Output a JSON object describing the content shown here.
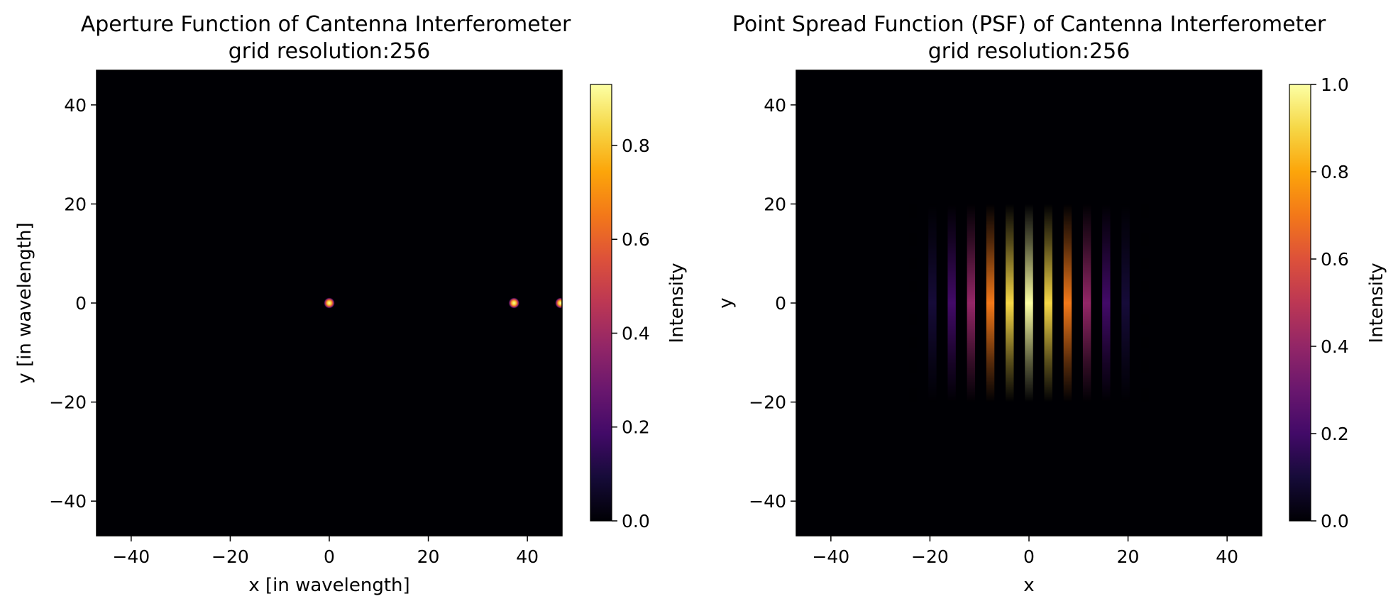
{
  "chart_data": [
    {
      "type": "heatmap",
      "title": "Aperture Function of Cantenna Interferometer",
      "subtitle": "grid resolution:256",
      "xlabel": "x [in wavelength]",
      "ylabel": "y [in wavelength]",
      "xlim": [
        -47,
        47
      ],
      "ylim": [
        -47,
        47
      ],
      "xticks": [
        -40,
        -20,
        0,
        20,
        40
      ],
      "yticks": [
        -40,
        -20,
        0,
        20,
        40
      ],
      "colormap": "inferno",
      "background": "#000004",
      "grid": false,
      "features": [
        {
          "x": 0,
          "y": 0,
          "value": 0.93
        },
        {
          "x": 37.3,
          "y": 0,
          "value": 0.93
        },
        {
          "x": 46.7,
          "y": 0,
          "value": 0.93
        }
      ],
      "colorbar": {
        "label": "Intensity",
        "range": [
          0,
          0.93
        ],
        "ticks": [
          0.0,
          0.2,
          0.4,
          0.6,
          0.8
        ],
        "tick_labels": [
          "0.0",
          "0.2",
          "0.4",
          "0.6",
          "0.8"
        ]
      }
    },
    {
      "type": "heatmap",
      "title": "Point Spread Function (PSF) of Cantenna Interferometer",
      "subtitle": "grid resolution:256",
      "xlabel": "x",
      "ylabel": "y",
      "xlim": [
        -47,
        47
      ],
      "ylim": [
        -47,
        47
      ],
      "xticks": [
        -40,
        -20,
        0,
        20,
        40
      ],
      "yticks": [
        -40,
        -20,
        0,
        20,
        40
      ],
      "colormap": "inferno",
      "background": "#000004",
      "grid": false,
      "pattern": {
        "peak": 1.0,
        "center": [
          0,
          0
        ],
        "fringe_period_x": 3.9,
        "envelope_halfwidth_x": 24,
        "envelope_halfheight_y": 20
      },
      "colorbar": {
        "label": "Intensity",
        "range": [
          0,
          1.0
        ],
        "ticks": [
          0.0,
          0.2,
          0.4,
          0.6,
          0.8,
          1.0
        ],
        "tick_labels": [
          "0.0",
          "0.2",
          "0.4",
          "0.6",
          "0.8",
          "1.0"
        ]
      }
    }
  ]
}
